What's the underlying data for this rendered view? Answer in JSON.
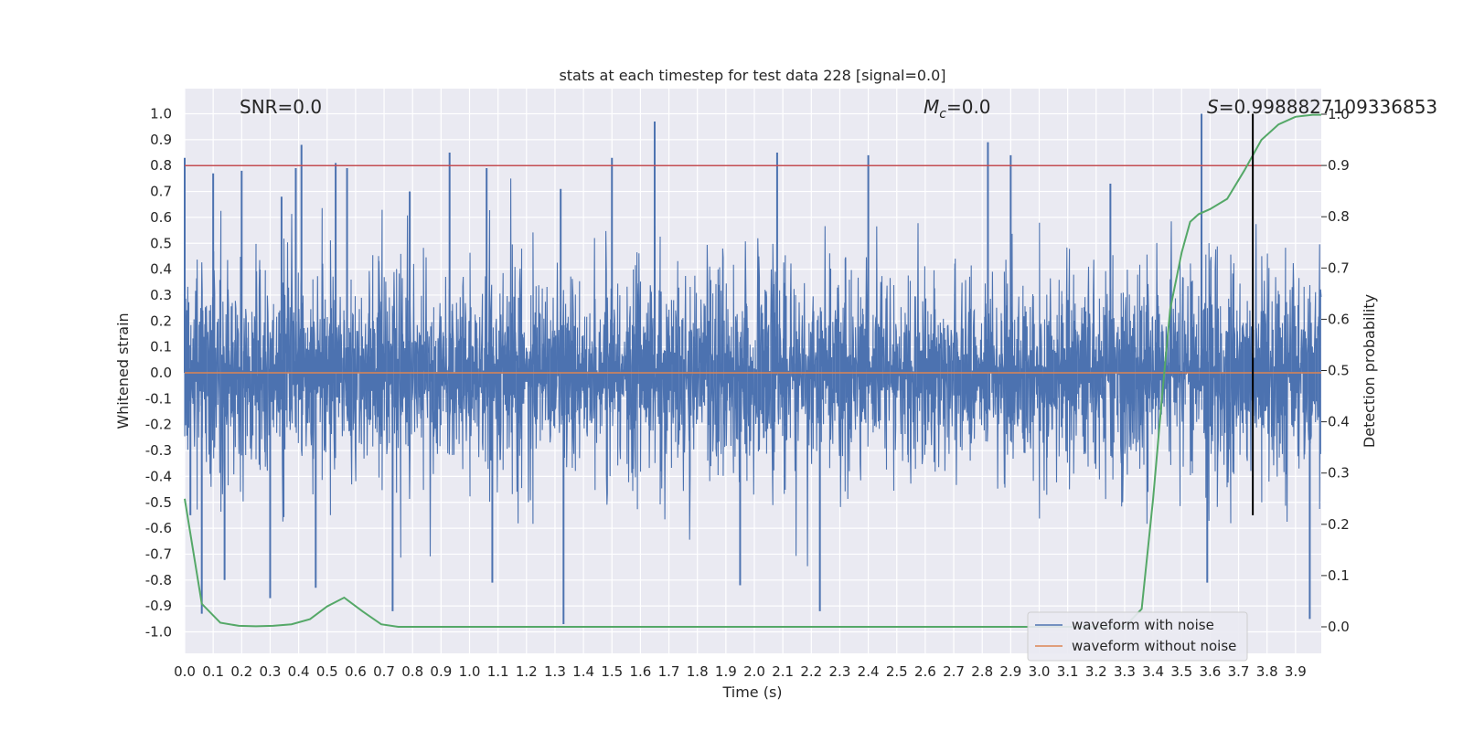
{
  "chart_data": {
    "type": "line",
    "title": "stats at each timestep for test data 228 [signal=0.0]",
    "xlabel": "Time (s)",
    "ylabel": "Whitened strain",
    "y2label": "Detection probability",
    "xlim": [
      0.0,
      3.99
    ],
    "ylim": [
      -1.1,
      1.1
    ],
    "y2lim": [
      -0.05,
      1.05
    ],
    "grid": true,
    "legend_position": "lower-right",
    "xticks": [
      "0.0",
      "0.1",
      "0.2",
      "0.3",
      "0.4",
      "0.5",
      "0.6",
      "0.7",
      "0.8",
      "0.9",
      "1.0",
      "1.1",
      "1.2",
      "1.3",
      "1.4",
      "1.5",
      "1.6",
      "1.7",
      "1.8",
      "1.9",
      "2.0",
      "2.1",
      "2.2",
      "2.3",
      "2.4",
      "2.5",
      "2.6",
      "2.7",
      "2.8",
      "2.9",
      "3.0",
      "3.1",
      "3.2",
      "3.3",
      "3.4",
      "3.5",
      "3.6",
      "3.7",
      "3.8",
      "3.9"
    ],
    "yticks": [
      "1.0",
      "0.9",
      "0.8",
      "0.7",
      "0.6",
      "0.5",
      "0.4",
      "0.3",
      "0.2",
      "0.1",
      "0.0",
      "-0.1",
      "-0.2",
      "-0.3",
      "-0.4",
      "-0.5",
      "-0.6",
      "-0.7",
      "-0.8",
      "-0.9",
      "-1.0"
    ],
    "y2ticks": [
      "1.0",
      "0.9",
      "0.8",
      "0.7",
      "0.6",
      "0.5",
      "0.4",
      "0.3",
      "0.2",
      "0.1",
      "0.0"
    ],
    "annotations": {
      "snr": "SNR=0.0",
      "mc_symbol": "M",
      "mc_subscript": "c",
      "mc_value": "=0.0",
      "s_symbol": "S",
      "s_value": "=0.9988827109336853"
    },
    "threshold_line": {
      "y": 0.8,
      "color": "#c44e52"
    },
    "marker_vline": {
      "x": 3.75,
      "y_from": -0.55,
      "y_to": 1.0,
      "color": "#000000"
    },
    "series": [
      {
        "name": "waveform with noise",
        "color": "#4c72b0",
        "description_points": [
          [
            0.0,
            0.83
          ],
          [
            0.02,
            -0.55
          ],
          [
            0.06,
            -0.93
          ],
          [
            0.1,
            0.77
          ],
          [
            0.14,
            -0.8
          ],
          [
            0.2,
            0.78
          ],
          [
            0.3,
            -0.87
          ],
          [
            0.34,
            0.68
          ],
          [
            0.39,
            0.79
          ],
          [
            0.41,
            0.88
          ],
          [
            0.46,
            -0.83
          ],
          [
            0.53,
            0.81
          ],
          [
            0.57,
            0.79
          ],
          [
            0.73,
            -0.92
          ],
          [
            0.79,
            0.7
          ],
          [
            0.93,
            0.85
          ],
          [
            1.06,
            0.79
          ],
          [
            1.08,
            -0.81
          ],
          [
            1.32,
            0.71
          ],
          [
            1.33,
            -0.97
          ],
          [
            1.5,
            0.83
          ],
          [
            1.65,
            0.97
          ],
          [
            1.95,
            -0.82
          ],
          [
            2.08,
            0.85
          ],
          [
            2.23,
            -0.92
          ],
          [
            2.4,
            0.84
          ],
          [
            2.82,
            0.89
          ],
          [
            2.9,
            0.84
          ],
          [
            3.25,
            0.73
          ],
          [
            3.57,
            1.0
          ],
          [
            3.59,
            -0.81
          ],
          [
            3.95,
            -0.95
          ]
        ]
      },
      {
        "name": "waveform without noise",
        "color": "#dd8452",
        "x": [
          0.0,
          3.99
        ],
        "y": [
          0.0,
          0.0
        ]
      },
      {
        "name": "detection probability",
        "color": "#55a868",
        "axis": "y2",
        "x": [
          0.0,
          0.06,
          0.125,
          0.19,
          0.25,
          0.31,
          0.375,
          0.44,
          0.5,
          0.56,
          0.625,
          0.69,
          0.75,
          0.8,
          1.0,
          1.5,
          2.0,
          2.5,
          3.0,
          3.3,
          3.36,
          3.4,
          3.43,
          3.46,
          3.5,
          3.53,
          3.56,
          3.6,
          3.66,
          3.72,
          3.78,
          3.84,
          3.9,
          3.96,
          3.99
        ],
        "y": [
          0.25,
          0.045,
          0.008,
          0.002,
          0.001,
          0.002,
          0.005,
          0.015,
          0.04,
          0.057,
          0.03,
          0.005,
          0.0,
          0.0,
          0.0,
          0.0,
          0.0,
          0.0,
          0.0,
          0.0,
          0.035,
          0.25,
          0.44,
          0.62,
          0.73,
          0.79,
          0.805,
          0.815,
          0.835,
          0.89,
          0.95,
          0.98,
          0.995,
          0.999,
          0.999
        ]
      }
    ]
  }
}
